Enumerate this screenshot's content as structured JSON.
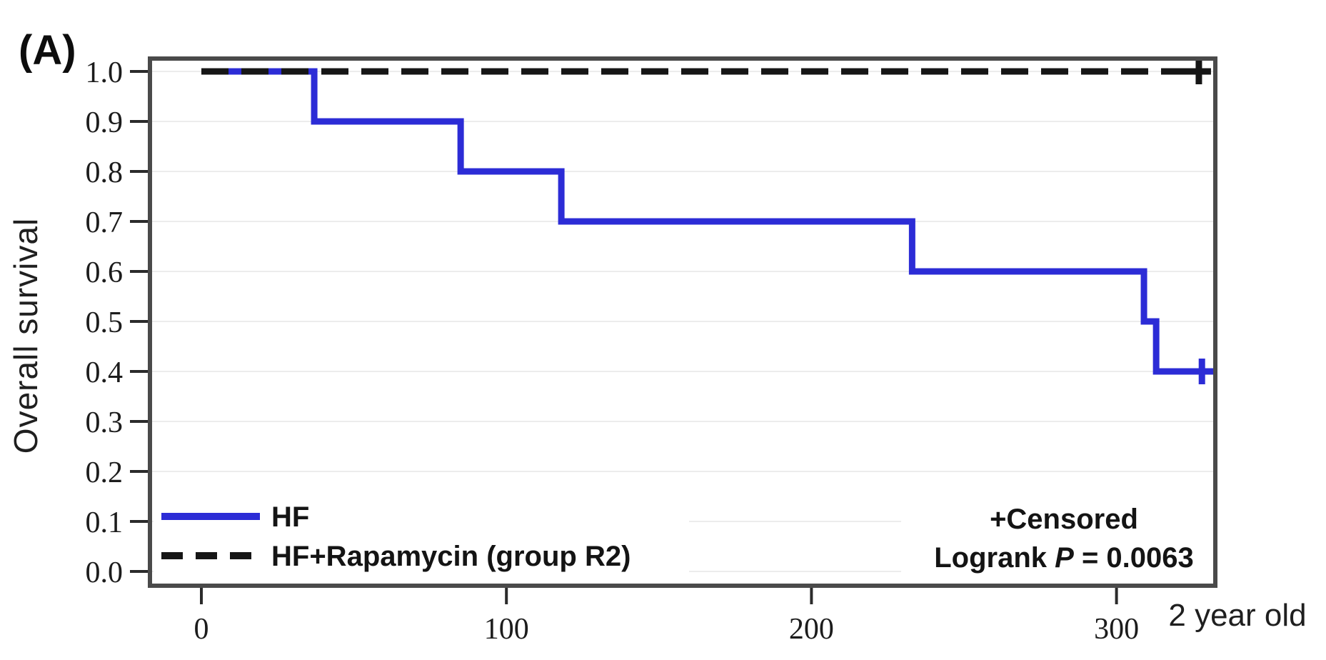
{
  "panel_label": "(A)",
  "colors": {
    "hf_blue": "#2c2cd6",
    "rapamycin_black": "#161616",
    "border_gray": "#4a4a4a",
    "grid_gray": "#ececec",
    "tick_gray": "#2b2b2b"
  },
  "axis": {
    "ylabel": "Overall survival",
    "x_unit_label": "2 year old",
    "x_ticks": [
      "0",
      "100",
      "200",
      "300"
    ],
    "y_ticks": [
      "1.0",
      "0.9",
      "0.8",
      "0.7",
      "0.6",
      "0.5",
      "0.4",
      "0.3",
      "0.2",
      "0.1",
      "0.0"
    ]
  },
  "legend": {
    "entries": [
      {
        "label": "HF",
        "style": "solid",
        "color": "#2c2cd6"
      },
      {
        "label": "HF+Rapamycin (group R2)",
        "style": "dashed",
        "color": "#161616"
      }
    ]
  },
  "annotations": {
    "censored": "+Censored",
    "logrank_prefix": "Logrank ",
    "logrank_p_symbol": "P",
    "logrank_value": " = 0.0063"
  },
  "chart_data": {
    "type": "line",
    "subtype": "kaplan-meier-step",
    "title": "",
    "xlabel": "2 year old",
    "ylabel": "Overall survival",
    "x_ticks": [
      0,
      100,
      200,
      300
    ],
    "y_ticks": [
      1.0,
      0.9,
      0.8,
      0.7,
      0.6,
      0.5,
      0.4,
      0.3,
      0.2,
      0.1,
      0.0
    ],
    "xlim": [
      -17,
      332
    ],
    "ylim": [
      -0.03,
      1.026
    ],
    "grid": true,
    "legend_position": "bottom-left",
    "annotations": [
      "+Censored",
      "Logrank P = 0.0063"
    ],
    "logrank_p": "0.0063",
    "series": [
      {
        "name": "HF",
        "color": "#2c2cd6",
        "line_style": "solid",
        "step_x": [
          0,
          37,
          85,
          118,
          233,
          309,
          313
        ],
        "step_y": [
          1.0,
          0.9,
          0.8,
          0.7,
          0.6,
          0.5,
          0.4
        ],
        "end_x": 330,
        "censor_marks": [
          {
            "x": 328,
            "y": 0.4
          }
        ]
      },
      {
        "name": "HF+Rapamycin (group R2)",
        "color": "#161616",
        "line_style": "dashed",
        "step_x": [
          0
        ],
        "step_y": [
          1.0
        ],
        "end_x": 330,
        "censor_marks": [
          {
            "x": 327,
            "y": 1.0
          }
        ]
      }
    ]
  }
}
